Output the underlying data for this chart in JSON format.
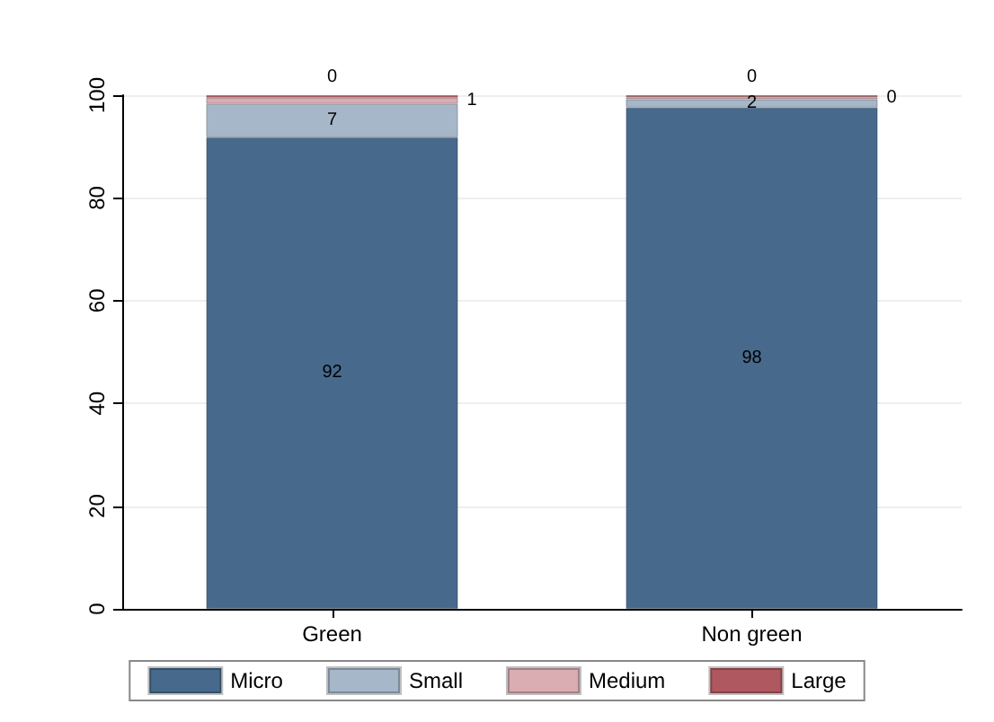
{
  "chart_data": {
    "type": "bar",
    "stacked": true,
    "categories": [
      "Green",
      "Non green"
    ],
    "series": [
      {
        "name": "Micro",
        "color": "#476a8c",
        "values": [
          91.8,
          97.6
        ],
        "value_labels": [
          "92",
          "98"
        ]
      },
      {
        "name": "Small",
        "color": "#a6b7c9",
        "values": [
          6.5,
          1.6
        ],
        "value_labels": [
          "7",
          "2"
        ]
      },
      {
        "name": "Medium",
        "color": "#d9adb2",
        "values": [
          1.2,
          0.4
        ],
        "value_labels": [
          "1",
          "0"
        ]
      },
      {
        "name": "Large",
        "color": "#b0585f",
        "values": [
          0.5,
          0.4
        ],
        "value_labels": [
          "0",
          "0"
        ]
      }
    ],
    "ylim": [
      0,
      100
    ],
    "yticks": [
      0,
      20,
      40,
      60,
      80,
      100
    ],
    "grid": "y",
    "legend": "bottom"
  }
}
